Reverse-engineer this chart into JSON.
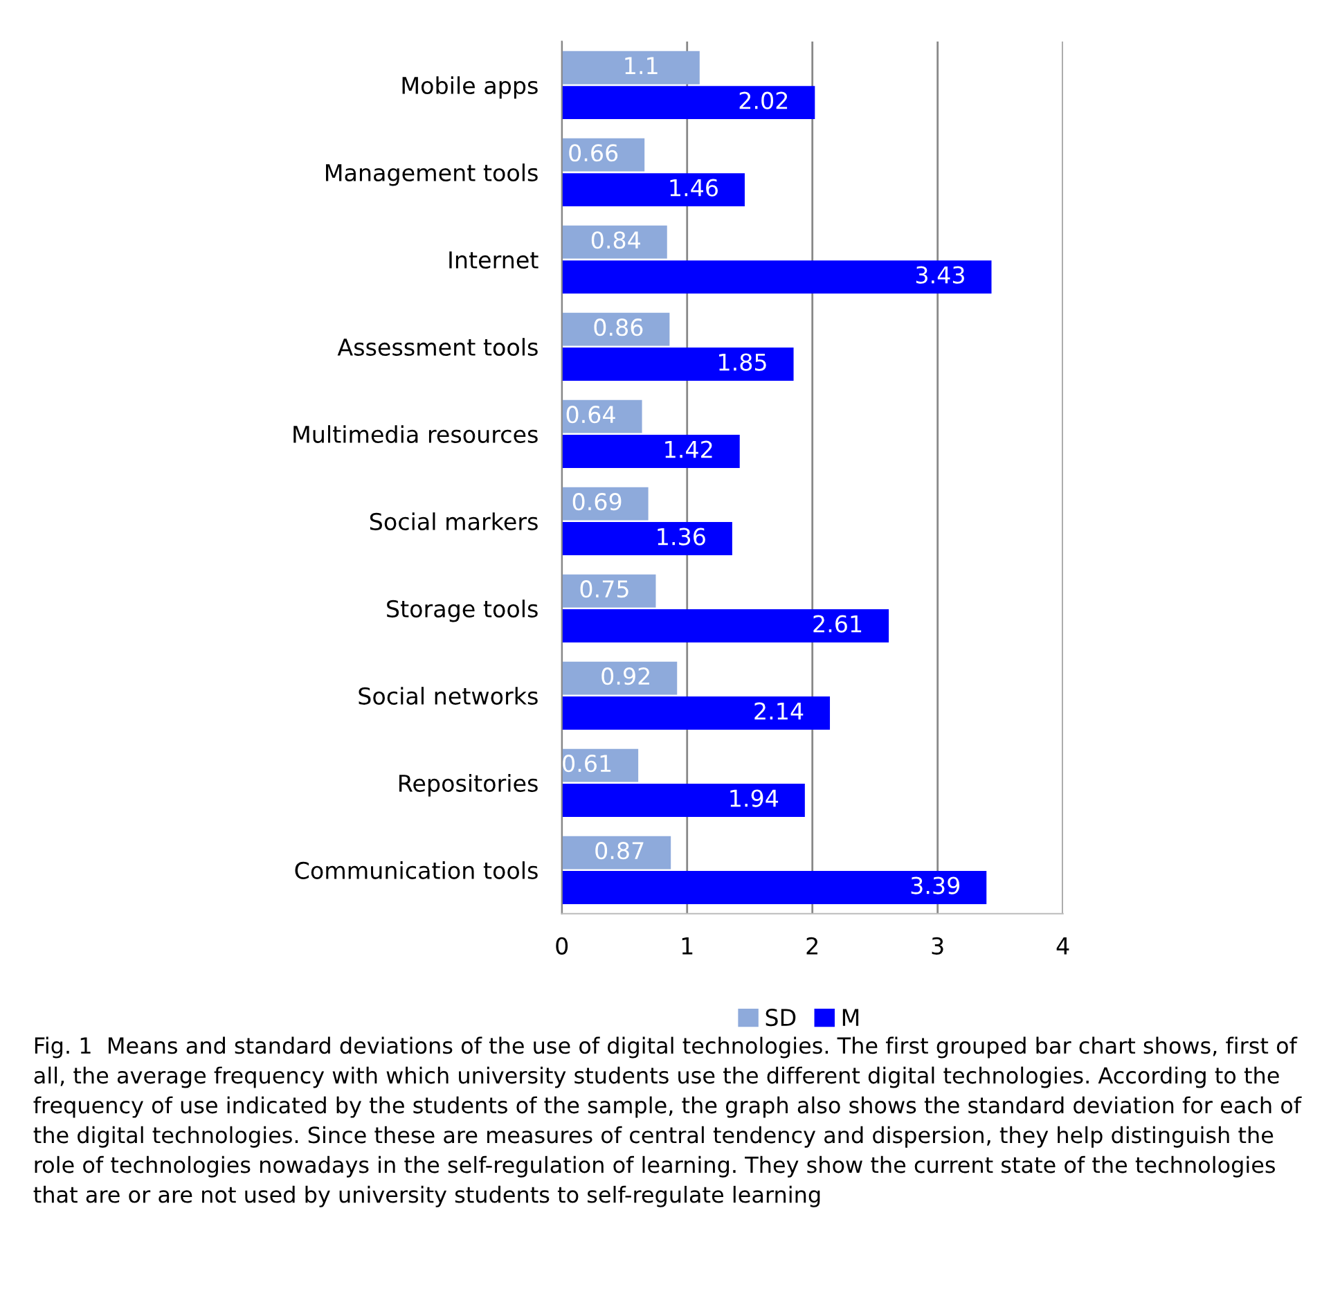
{
  "chart_data": {
    "type": "bar",
    "orientation": "horizontal",
    "categories": [
      "Mobile apps",
      "Management tools",
      "Internet",
      "Assessment tools",
      "Multimedia resources",
      "Social markers",
      "Storage tools",
      "Social networks",
      "Repositories",
      "Communication tools"
    ],
    "series": [
      {
        "name": "SD",
        "color": "#8eaadb",
        "values": [
          1.1,
          0.66,
          0.84,
          0.86,
          0.64,
          0.69,
          0.75,
          0.92,
          0.61,
          0.87
        ]
      },
      {
        "name": "M",
        "color": "#0000ff",
        "values": [
          2.02,
          1.46,
          3.43,
          1.85,
          1.42,
          1.36,
          2.61,
          2.14,
          1.94,
          3.39
        ]
      }
    ],
    "xlim": [
      0,
      4
    ],
    "xticks": [
      0,
      1,
      2,
      3,
      4
    ],
    "grid": "x",
    "legend": "bottom",
    "data_labels": true,
    "annotations": [
      "Fig. 1  Means and standard deviations of the use of digital technologies. The first grouped bar chart shows, first of all, the average frequency with which university students use the different digital technologies. According to the frequency of use indicated by the students of the sample, the graph also shows the standard deviation for each of the digital technologies. Since these are measures of central tendency and dispersion, they help distinguish the role of technologies nowadays in the self-regulation of learning. They show the current state of the technologies that are or are not used by university students to self-regulate learning"
    ]
  }
}
